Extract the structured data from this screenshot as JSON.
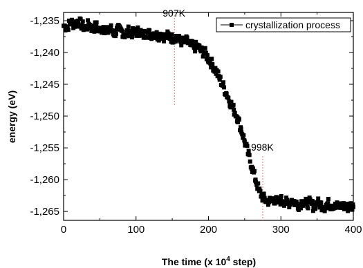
{
  "chart_data": {
    "type": "scatter",
    "xlabel_main": "The time (x 10",
    "xlabel_sup": "4",
    "xlabel_tail": " step)",
    "ylabel": "energy (eV)",
    "xlim": [
      0,
      400
    ],
    "ylim": [
      -1.2664,
      -1.2337
    ],
    "xticks": [
      0,
      100,
      200,
      300,
      400
    ],
    "xtick_labels": [
      "0",
      "100",
      "200",
      "300",
      "400"
    ],
    "yticks": [
      -1.235,
      -1.24,
      -1.245,
      -1.25,
      -1.255,
      -1.26,
      -1.265
    ],
    "ytick_labels": [
      "-1,235",
      "-1,240",
      "-1,245",
      "-1,250",
      "-1,255",
      "-1,260",
      "-1,265"
    ],
    "grid": false,
    "legend_position": "top-right",
    "series": [
      {
        "name": "crystallization process",
        "marker": "square",
        "color": "#000000",
        "x": [
          0,
          5,
          10,
          15,
          20,
          25,
          30,
          35,
          40,
          45,
          50,
          55,
          60,
          65,
          70,
          75,
          80,
          85,
          90,
          95,
          100,
          105,
          110,
          115,
          120,
          125,
          130,
          135,
          140,
          145,
          150,
          155,
          160,
          165,
          170,
          175,
          180,
          185,
          190,
          195,
          200,
          205,
          210,
          215,
          220,
          225,
          230,
          235,
          240,
          245,
          250,
          255,
          260,
          265,
          270,
          275,
          280,
          285,
          290,
          295,
          300,
          305,
          310,
          315,
          320,
          325,
          330,
          335,
          340,
          345,
          350,
          355,
          360,
          365,
          370,
          375,
          380,
          385,
          390,
          395,
          400
        ],
        "y": [
          -1.2358,
          -1.236,
          -1.2352,
          -1.2356,
          -1.235,
          -1.2357,
          -1.2362,
          -1.2355,
          -1.2363,
          -1.2358,
          -1.2366,
          -1.236,
          -1.2368,
          -1.2362,
          -1.237,
          -1.2364,
          -1.2366,
          -1.2372,
          -1.2366,
          -1.237,
          -1.2368,
          -1.2366,
          -1.2373,
          -1.2368,
          -1.2372,
          -1.237,
          -1.2374,
          -1.2371,
          -1.2376,
          -1.2373,
          -1.2378,
          -1.2375,
          -1.2381,
          -1.2384,
          -1.2382,
          -1.2388,
          -1.2392,
          -1.239,
          -1.2398,
          -1.24,
          -1.241,
          -1.2418,
          -1.2428,
          -1.244,
          -1.2452,
          -1.2465,
          -1.2478,
          -1.249,
          -1.2502,
          -1.252,
          -1.254,
          -1.256,
          -1.258,
          -1.26,
          -1.2618,
          -1.2628,
          -1.2633,
          -1.2634,
          -1.263,
          -1.2636,
          -1.2632,
          -1.2634,
          -1.2638,
          -1.2632,
          -1.2636,
          -1.264,
          -1.2634,
          -1.2638,
          -1.2636,
          -1.2642,
          -1.2636,
          -1.2639,
          -1.2643,
          -1.2637,
          -1.2641,
          -1.2638,
          -1.2644,
          -1.264,
          -1.2645,
          -1.2641,
          -1.2643
        ]
      }
    ],
    "annotations": [
      {
        "text": "907K",
        "x": 153
      },
      {
        "text": "998K",
        "x": 275
      }
    ],
    "annotation_line_color": "#e8765b"
  }
}
